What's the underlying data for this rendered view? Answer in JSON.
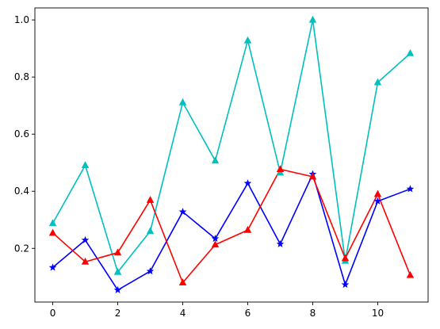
{
  "chart_data": {
    "type": "line",
    "title": "",
    "xlabel": "",
    "ylabel": "",
    "x": [
      0,
      1,
      2,
      3,
      4,
      5,
      6,
      7,
      8,
      9,
      10,
      11
    ],
    "xlim": [
      -0.55,
      11.55
    ],
    "ylim": [
      0.012,
      1.042
    ],
    "xticks": [
      0,
      2,
      4,
      6,
      8,
      10
    ],
    "yticks": [
      0.2,
      0.4,
      0.6,
      0.8,
      1.0
    ],
    "xtick_labels": [
      "0",
      "2",
      "4",
      "6",
      "8",
      "10"
    ],
    "ytick_labels": [
      "0.2",
      "0.4",
      "0.6",
      "0.8",
      "1.0"
    ],
    "grid": false,
    "series": [
      {
        "color": "#00bfbf",
        "marker": "triangle",
        "values": [
          0.288,
          0.491,
          0.117,
          0.26,
          0.711,
          0.507,
          0.928,
          0.465,
          1.0,
          0.156,
          0.781,
          0.883
        ]
      },
      {
        "color": "#0000ff",
        "marker": "star",
        "values": [
          0.133,
          0.229,
          0.054,
          0.12,
          0.328,
          0.234,
          0.428,
          0.215,
          0.46,
          0.073,
          0.365,
          0.408
        ]
      },
      {
        "color": "#ff0000",
        "marker": "triangle",
        "values": [
          0.254,
          0.153,
          0.185,
          0.369,
          0.08,
          0.213,
          0.264,
          0.477,
          0.451,
          0.165,
          0.39,
          0.106
        ]
      }
    ]
  }
}
